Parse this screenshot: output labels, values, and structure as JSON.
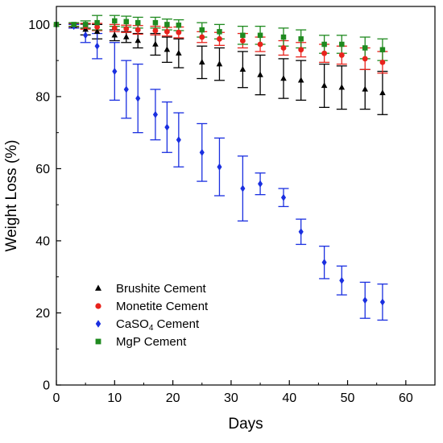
{
  "chart_data": {
    "type": "scatter",
    "xlabel": "Days",
    "ylabel": "Weight Loss (%)",
    "xlim": [
      0,
      65
    ],
    "ylim": [
      0,
      105
    ],
    "xticks": [
      "0",
      "10",
      "20",
      "30",
      "40",
      "50",
      "60"
    ],
    "yticks": [
      "0",
      "20",
      "40",
      "60",
      "80",
      "100"
    ],
    "legend_position": "lower-left",
    "series": [
      {
        "name": "Brushite Cement",
        "legend_main": "Brushite Cement",
        "legend_sub": "",
        "legend_tail": "",
        "marker": "triangle",
        "color": "#000000",
        "points": [
          {
            "x": 0,
            "y": 100,
            "err": 0
          },
          {
            "x": 3,
            "y": 99.6,
            "err": 0.6
          },
          {
            "x": 5,
            "y": 98.6,
            "err": 1.5
          },
          {
            "x": 7,
            "y": 98.0,
            "err": 2.0
          },
          {
            "x": 10,
            "y": 97.0,
            "err": 1.5
          },
          {
            "x": 12,
            "y": 96.5,
            "err": 1.5
          },
          {
            "x": 14,
            "y": 95.5,
            "err": 2.0
          },
          {
            "x": 17,
            "y": 94.5,
            "err": 3.0
          },
          {
            "x": 19,
            "y": 93.0,
            "err": 3.5
          },
          {
            "x": 21,
            "y": 92.0,
            "err": 4.0
          },
          {
            "x": 25,
            "y": 89.5,
            "err": 4.5
          },
          {
            "x": 28,
            "y": 89.0,
            "err": 4.5
          },
          {
            "x": 32,
            "y": 87.5,
            "err": 5.0
          },
          {
            "x": 35,
            "y": 86.0,
            "err": 5.5
          },
          {
            "x": 39,
            "y": 85.0,
            "err": 5.5
          },
          {
            "x": 42,
            "y": 84.5,
            "err": 5.5
          },
          {
            "x": 46,
            "y": 83.0,
            "err": 6.0
          },
          {
            "x": 49,
            "y": 82.5,
            "err": 6.0
          },
          {
            "x": 53,
            "y": 82.0,
            "err": 5.5
          },
          {
            "x": 56,
            "y": 81.0,
            "err": 6.0
          }
        ]
      },
      {
        "name": "Monetite Cement",
        "legend_main": "Monetite Cement",
        "legend_sub": "",
        "legend_tail": "",
        "marker": "circle",
        "color": "#e8231c",
        "points": [
          {
            "x": 0,
            "y": 100,
            "err": 0
          },
          {
            "x": 3,
            "y": 99.8,
            "err": 0.5
          },
          {
            "x": 5,
            "y": 99.5,
            "err": 0.8
          },
          {
            "x": 7,
            "y": 99.3,
            "err": 1.0
          },
          {
            "x": 10,
            "y": 99.0,
            "err": 1.0
          },
          {
            "x": 12,
            "y": 98.8,
            "err": 1.0
          },
          {
            "x": 14,
            "y": 98.5,
            "err": 1.2
          },
          {
            "x": 17,
            "y": 98.3,
            "err": 1.2
          },
          {
            "x": 19,
            "y": 98.0,
            "err": 1.2
          },
          {
            "x": 21,
            "y": 97.8,
            "err": 1.5
          },
          {
            "x": 25,
            "y": 96.5,
            "err": 1.5
          },
          {
            "x": 28,
            "y": 96.0,
            "err": 1.8
          },
          {
            "x": 32,
            "y": 95.5,
            "err": 2.0
          },
          {
            "x": 35,
            "y": 94.5,
            "err": 2.0
          },
          {
            "x": 39,
            "y": 93.5,
            "err": 2.0
          },
          {
            "x": 42,
            "y": 93.0,
            "err": 2.0
          },
          {
            "x": 46,
            "y": 92.0,
            "err": 2.5
          },
          {
            "x": 49,
            "y": 91.5,
            "err": 2.5
          },
          {
            "x": 53,
            "y": 90.5,
            "err": 3.0
          },
          {
            "x": 56,
            "y": 89.5,
            "err": 3.0
          }
        ]
      },
      {
        "name": "CaSO4 Cement",
        "legend_main": "CaSO",
        "legend_sub": "4",
        "legend_tail": " Cement",
        "marker": "diamond",
        "color": "#1a2fe0",
        "points": [
          {
            "x": 0,
            "y": 100,
            "err": 0
          },
          {
            "x": 3,
            "y": 99.5,
            "err": 0.5
          },
          {
            "x": 5,
            "y": 97.0,
            "err": 2.0
          },
          {
            "x": 7,
            "y": 94.0,
            "err": 3.5
          },
          {
            "x": 10,
            "y": 87.0,
            "err": 8.0
          },
          {
            "x": 12,
            "y": 82.0,
            "err": 8.0
          },
          {
            "x": 14,
            "y": 79.5,
            "err": 9.5
          },
          {
            "x": 17,
            "y": 75.0,
            "err": 7.0
          },
          {
            "x": 19,
            "y": 71.5,
            "err": 7.0
          },
          {
            "x": 21,
            "y": 68.0,
            "err": 7.5
          },
          {
            "x": 25,
            "y": 64.5,
            "err": 8.0
          },
          {
            "x": 28,
            "y": 60.5,
            "err": 8.0
          },
          {
            "x": 32,
            "y": 54.5,
            "err": 9.0
          },
          {
            "x": 35,
            "y": 55.8,
            "err": 3.0
          },
          {
            "x": 39,
            "y": 52.0,
            "err": 2.5
          },
          {
            "x": 42,
            "y": 42.5,
            "err": 3.5
          },
          {
            "x": 46,
            "y": 34.0,
            "err": 4.5
          },
          {
            "x": 49,
            "y": 29.0,
            "err": 4.0
          },
          {
            "x": 53,
            "y": 23.5,
            "err": 5.0
          },
          {
            "x": 56,
            "y": 23.0,
            "err": 5.0
          }
        ]
      },
      {
        "name": "MgP Cement",
        "legend_main": "MgP Cement",
        "legend_sub": "",
        "legend_tail": "",
        "marker": "square",
        "color": "#1f8a1f",
        "points": [
          {
            "x": 0,
            "y": 100,
            "err": 0
          },
          {
            "x": 3,
            "y": 100,
            "err": 0.5
          },
          {
            "x": 5,
            "y": 100,
            "err": 1.0
          },
          {
            "x": 7,
            "y": 100.5,
            "err": 2.0
          },
          {
            "x": 10,
            "y": 101.0,
            "err": 1.5
          },
          {
            "x": 12,
            "y": 100.8,
            "err": 1.5
          },
          {
            "x": 14,
            "y": 100.5,
            "err": 1.5
          },
          {
            "x": 17,
            "y": 100.5,
            "err": 1.5
          },
          {
            "x": 19,
            "y": 100.0,
            "err": 1.5
          },
          {
            "x": 21,
            "y": 99.8,
            "err": 1.5
          },
          {
            "x": 25,
            "y": 98.5,
            "err": 2.0
          },
          {
            "x": 28,
            "y": 98.0,
            "err": 2.0
          },
          {
            "x": 32,
            "y": 97.0,
            "err": 2.5
          },
          {
            "x": 35,
            "y": 97.0,
            "err": 2.5
          },
          {
            "x": 39,
            "y": 96.5,
            "err": 2.5
          },
          {
            "x": 42,
            "y": 96.0,
            "err": 2.5
          },
          {
            "x": 46,
            "y": 94.5,
            "err": 2.5
          },
          {
            "x": 49,
            "y": 94.5,
            "err": 2.5
          },
          {
            "x": 53,
            "y": 93.5,
            "err": 3.0
          },
          {
            "x": 56,
            "y": 93.0,
            "err": 3.0
          }
        ]
      }
    ]
  }
}
